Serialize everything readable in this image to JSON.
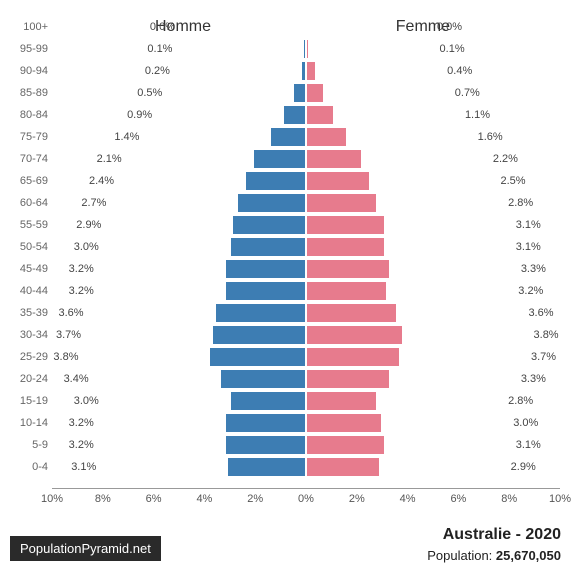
{
  "chart": {
    "type": "population-pyramid",
    "male_label": "Homme",
    "female_label": "Femme",
    "male_color": "#3d7db3",
    "female_color": "#e77b8d",
    "text_color": "#444444",
    "axis_color": "#999999",
    "background_color": "#ffffff",
    "x_max_pct": 10,
    "x_ticks": [
      {
        "pos": 0,
        "label": "10%"
      },
      {
        "pos": 10,
        "label": "8%"
      },
      {
        "pos": 20,
        "label": "6%"
      },
      {
        "pos": 30,
        "label": "4%"
      },
      {
        "pos": 40,
        "label": "2%"
      },
      {
        "pos": 50,
        "label": "0%"
      },
      {
        "pos": 60,
        "label": "2%"
      },
      {
        "pos": 70,
        "label": "4%"
      },
      {
        "pos": 80,
        "label": "6%"
      },
      {
        "pos": 90,
        "label": "8%"
      },
      {
        "pos": 100,
        "label": "10%"
      }
    ],
    "rows": [
      {
        "age": "100+",
        "male": 0.0,
        "female": 0.0,
        "male_label": "0.0%",
        "female_label": "0.0%"
      },
      {
        "age": "95-99",
        "male": 0.1,
        "female": 0.1,
        "male_label": "0.1%",
        "female_label": "0.1%"
      },
      {
        "age": "90-94",
        "male": 0.2,
        "female": 0.4,
        "male_label": "0.2%",
        "female_label": "0.4%"
      },
      {
        "age": "85-89",
        "male": 0.5,
        "female": 0.7,
        "male_label": "0.5%",
        "female_label": "0.7%"
      },
      {
        "age": "80-84",
        "male": 0.9,
        "female": 1.1,
        "male_label": "0.9%",
        "female_label": "1.1%"
      },
      {
        "age": "75-79",
        "male": 1.4,
        "female": 1.6,
        "male_label": "1.4%",
        "female_label": "1.6%"
      },
      {
        "age": "70-74",
        "male": 2.1,
        "female": 2.2,
        "male_label": "2.1%",
        "female_label": "2.2%"
      },
      {
        "age": "65-69",
        "male": 2.4,
        "female": 2.5,
        "male_label": "2.4%",
        "female_label": "2.5%"
      },
      {
        "age": "60-64",
        "male": 2.7,
        "female": 2.8,
        "male_label": "2.7%",
        "female_label": "2.8%"
      },
      {
        "age": "55-59",
        "male": 2.9,
        "female": 3.1,
        "male_label": "2.9%",
        "female_label": "3.1%"
      },
      {
        "age": "50-54",
        "male": 3.0,
        "female": 3.1,
        "male_label": "3.0%",
        "female_label": "3.1%"
      },
      {
        "age": "45-49",
        "male": 3.2,
        "female": 3.3,
        "male_label": "3.2%",
        "female_label": "3.3%"
      },
      {
        "age": "40-44",
        "male": 3.2,
        "female": 3.2,
        "male_label": "3.2%",
        "female_label": "3.2%"
      },
      {
        "age": "35-39",
        "male": 3.6,
        "female": 3.6,
        "male_label": "3.6%",
        "female_label": "3.6%"
      },
      {
        "age": "30-34",
        "male": 3.7,
        "female": 3.8,
        "male_label": "3.7%",
        "female_label": "3.8%"
      },
      {
        "age": "25-29",
        "male": 3.8,
        "female": 3.7,
        "male_label": "3.8%",
        "female_label": "3.7%"
      },
      {
        "age": "20-24",
        "male": 3.4,
        "female": 3.3,
        "male_label": "3.4%",
        "female_label": "3.3%"
      },
      {
        "age": "15-19",
        "male": 3.0,
        "female": 2.8,
        "male_label": "3.0%",
        "female_label": "2.8%"
      },
      {
        "age": "10-14",
        "male": 3.2,
        "female": 3.0,
        "male_label": "3.2%",
        "female_label": "3.0%"
      },
      {
        "age": "5-9",
        "male": 3.2,
        "female": 3.1,
        "male_label": "3.2%",
        "female_label": "3.1%"
      },
      {
        "age": "0-4",
        "male": 3.1,
        "female": 2.9,
        "male_label": "3.1%",
        "female_label": "2.9%"
      }
    ]
  },
  "footer": {
    "source_badge": "PopulationPyramid.net",
    "country": "Australie",
    "year": "2020",
    "population_label": "Population:",
    "population": "25,670,050"
  }
}
